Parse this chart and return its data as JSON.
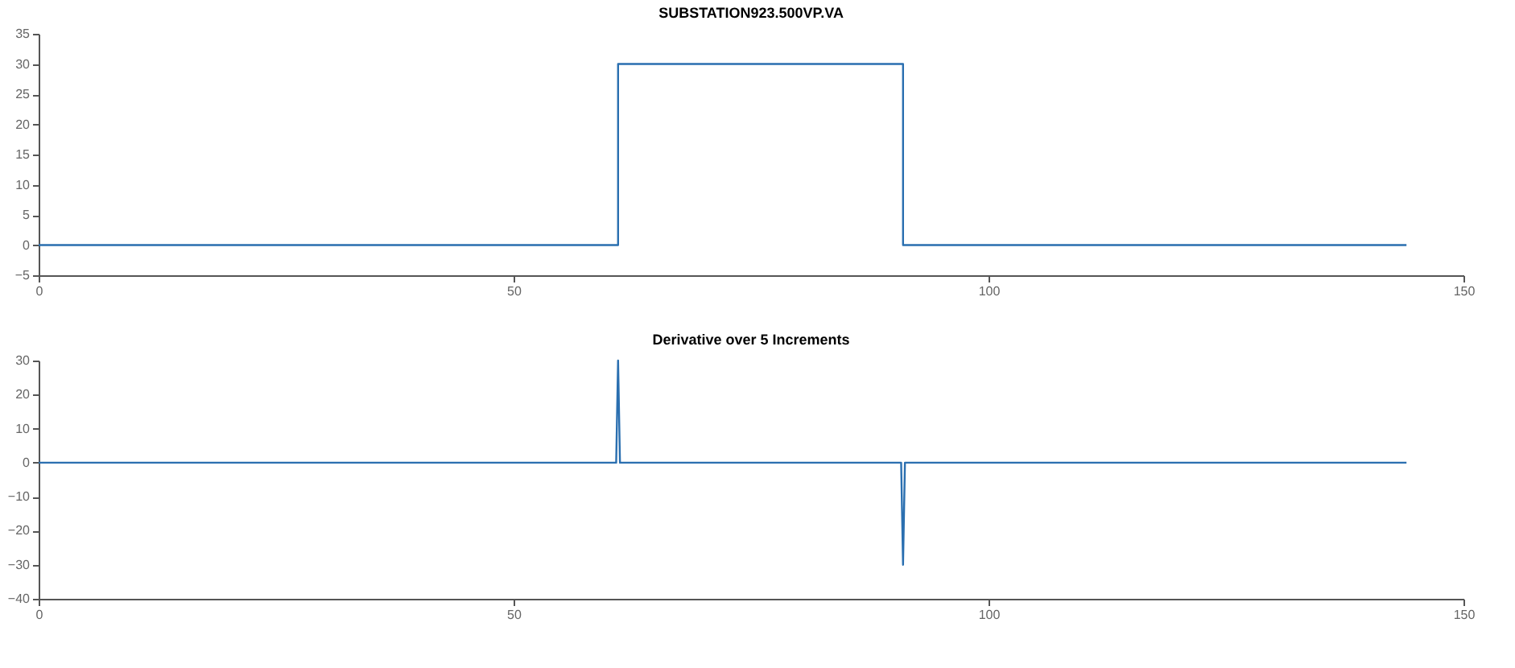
{
  "chart_data": [
    {
      "type": "line",
      "title": "SUBSTATION923.500VP.VA",
      "xlim": [
        0,
        150
      ],
      "xticks": [
        0,
        50,
        100,
        150
      ],
      "ylim": [
        -5,
        35
      ],
      "yticks": [
        -5,
        0,
        5,
        10,
        15,
        20,
        25,
        30,
        35
      ],
      "grid": false,
      "series": [
        {
          "color": "#2a6fb0",
          "x": [
            0,
            61,
            61,
            91,
            91,
            144
          ],
          "values": [
            0,
            0,
            30,
            30,
            0,
            0
          ]
        }
      ]
    },
    {
      "type": "line",
      "title": "Derivative over 5 Increments",
      "xlim": [
        0,
        150
      ],
      "xticks": [
        0,
        50,
        100,
        150
      ],
      "ylim": [
        -40,
        30
      ],
      "yticks": [
        -40,
        -30,
        -20,
        -10,
        0,
        10,
        20,
        30
      ],
      "grid": false,
      "series": [
        {
          "color": "#2a6fb0",
          "x": [
            0,
            60.8,
            61,
            61.2,
            90.8,
            91,
            91.2,
            144
          ],
          "values": [
            0,
            0,
            30,
            0,
            0,
            -30,
            0,
            0
          ]
        }
      ]
    }
  ]
}
